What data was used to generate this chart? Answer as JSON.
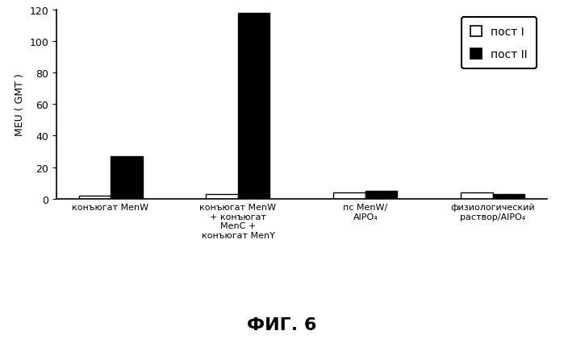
{
  "categories": [
    "конъюгат МenW",
    "конъюгат MenW\n+ конъюгат\nMenC +\nконъюгат MenY",
    "пс MenW/\nAlPO₄",
    "физиологический\nраствор/AlPO₄"
  ],
  "post1_values": [
    2.0,
    3.0,
    4.0,
    4.0
  ],
  "post2_values": [
    27.0,
    118.0,
    5.0,
    3.0
  ],
  "post1_color": "#ffffff",
  "post2_color": "#000000",
  "post1_edge": "#000000",
  "post2_edge": "#000000",
  "ylabel": "MEU ( GMT )",
  "ylim": [
    0,
    120
  ],
  "yticks": [
    0,
    20,
    40,
    60,
    80,
    100,
    120
  ],
  "legend_post1": "пост I",
  "legend_post2": "пост II",
  "figure_title": "ФИГ. 6",
  "bar_width": 0.25,
  "background_color": "#ffffff"
}
